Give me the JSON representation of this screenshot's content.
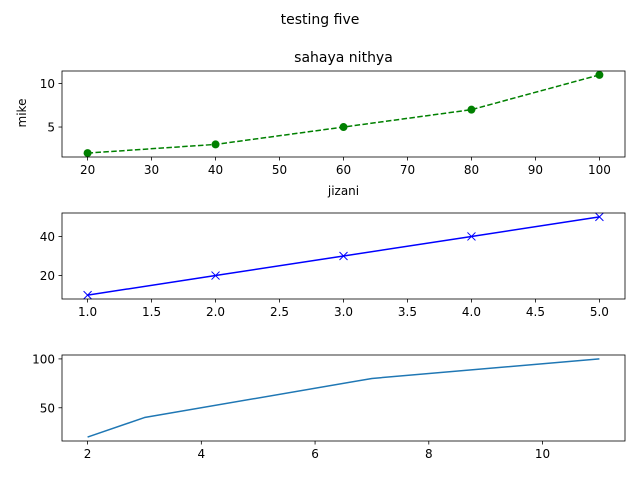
{
  "figure": {
    "suptitle": "testing five"
  },
  "chart_data": [
    {
      "type": "line",
      "title": "sahaya nithya",
      "xlabel": "jizani",
      "ylabel": "mike",
      "x": [
        20,
        40,
        60,
        80,
        100
      ],
      "series": [
        {
          "values": [
            2,
            3,
            5,
            7,
            11
          ],
          "color": "#008000",
          "line_style": "dashed",
          "marker": "circle"
        }
      ],
      "xlim": [
        16,
        104
      ],
      "ylim": [
        1.55,
        11.45
      ],
      "xticks": [
        20,
        30,
        40,
        50,
        60,
        70,
        80,
        90,
        100
      ],
      "xtick_labels": [
        "20",
        "30",
        "40",
        "50",
        "60",
        "70",
        "80",
        "90",
        "100"
      ],
      "yticks": [
        5,
        10
      ],
      "ytick_labels": [
        "5",
        "10"
      ],
      "grid": false
    },
    {
      "type": "line",
      "title": "",
      "xlabel": "",
      "ylabel": "",
      "x": [
        1,
        2,
        3,
        4,
        5
      ],
      "series": [
        {
          "values": [
            10,
            20,
            30,
            40,
            50
          ],
          "color": "#0000ff",
          "line_style": "solid",
          "marker": "x"
        }
      ],
      "xlim": [
        0.8,
        5.2
      ],
      "ylim": [
        8,
        52
      ],
      "xticks": [
        1.0,
        1.5,
        2.0,
        2.5,
        3.0,
        3.5,
        4.0,
        4.5,
        5.0
      ],
      "xtick_labels": [
        "1.0",
        "1.5",
        "2.0",
        "2.5",
        "3.0",
        "3.5",
        "4.0",
        "4.5",
        "5.0"
      ],
      "yticks": [
        20,
        40
      ],
      "ytick_labels": [
        "20",
        "40"
      ],
      "grid": false
    },
    {
      "type": "line",
      "title": "",
      "xlabel": "",
      "ylabel": "",
      "x": [
        2,
        3,
        7,
        11
      ],
      "series": [
        {
          "values": [
            20,
            40,
            80,
            100
          ],
          "color": "#1f77b4",
          "line_style": "solid",
          "marker": "none"
        }
      ],
      "xlim": [
        1.55,
        11.45
      ],
      "ylim": [
        16,
        104
      ],
      "xticks": [
        2,
        4,
        6,
        8,
        10
      ],
      "xtick_labels": [
        "2",
        "4",
        "6",
        "8",
        "10"
      ],
      "yticks": [
        50,
        100
      ],
      "ytick_labels": [
        "50",
        "100"
      ],
      "grid": false
    }
  ]
}
